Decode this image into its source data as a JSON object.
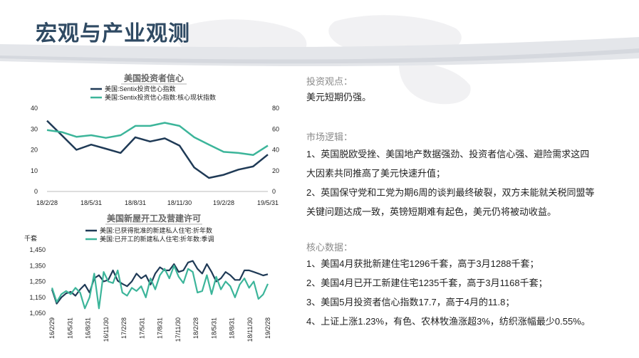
{
  "page": {
    "title": "宏观与产业观测"
  },
  "right": {
    "view_label": "投资观点：",
    "view_text": "美元短期仍强。",
    "logic_label": "市场逻辑：",
    "logic_1": "1、英国脱欧受挫、美国地产数据强劲、投资者信心强、避险需求这四大因素共同推高了美元快速升值；",
    "logic_2": "2、英国保守党和工党为期6周的谈判最终破裂，双方未能就关税同盟等关键问题达成一致，英镑短期难有起色，美元仍将被动收益。",
    "core_label": "核心数据：",
    "core_1": "1、美国4月获批新建住宅1296千套，高于3月1288千套；",
    "core_2": "2、美国4月已开工新建住宅1235千套，高于3月1168千套；",
    "core_3": "3、美国5月投资者信心指数17.7，高于4月的11.8；",
    "core_4": "4、上证上涨1.23%，有色、农林牧渔涨超3%，纺织涨幅最少0.55%。"
  },
  "colors": {
    "navy": "#1f3a56",
    "teal": "#3cb59a",
    "title": "#2f4a63"
  },
  "chart_data": [
    {
      "type": "line",
      "title": "美国投资者信心",
      "x_tick_labels": [
        "18/2/28",
        "18/5/31",
        "18/8/31",
        "18/11/30",
        "19/2/28",
        "19/5/31"
      ],
      "y_left_ticks": [
        "0",
        "10",
        "20",
        "30",
        "40"
      ],
      "y_right_ticks": [
        "0",
        "20",
        "40",
        "60",
        "80"
      ],
      "ylim_left": [
        0,
        40
      ],
      "ylim_right": [
        0,
        80
      ],
      "series": [
        {
          "name": "美国:Sentix投资信心指数",
          "axis": "left",
          "color": "#1f3a56",
          "values": [
            34,
            27,
            20,
            22.5,
            20.5,
            18.5,
            26,
            24,
            25.5,
            22,
            11.5,
            6.5,
            8,
            10.5,
            12,
            17.7
          ]
        },
        {
          "name": "美国:Sentix投资信心指数:核心现状指数",
          "axis": "right",
          "color": "#3cb59a",
          "values": [
            59,
            57,
            52.5,
            54,
            51.5,
            54,
            63,
            63,
            66,
            63,
            52,
            45,
            38,
            37,
            35,
            44
          ]
        }
      ]
    },
    {
      "type": "line",
      "title": "美国新屋开工及营建许可",
      "ylabel": "千套",
      "x_tick_labels": [
        "16/2/29",
        "16/5/31",
        "16/8/31",
        "16/11/30",
        "17/2/28",
        "17/5/31",
        "17/8/31",
        "17/11/30",
        "18/2/28",
        "18/5/31",
        "18/8/31",
        "18/11/30",
        "19/2/28"
      ],
      "y_ticks": [
        "1,050",
        "1,150",
        "1,250",
        "1,350",
        "1,450"
      ],
      "ylim": [
        1050,
        1450
      ],
      "series": [
        {
          "name": "美国:已获得批准的新建私人住宅:折年数",
          "color": "#1f3a56",
          "values": [
            1200,
            1110,
            1150,
            1175,
            1185,
            1160,
            1200,
            1230,
            1180,
            1270,
            1290,
            1250,
            1260,
            1320,
            1255,
            1235,
            1220,
            1250,
            1300,
            1270,
            1290,
            1230,
            1300,
            1340,
            1320,
            1320,
            1360,
            1310,
            1320,
            1370,
            1380,
            1330,
            1300,
            1360,
            1310,
            1250,
            1270,
            1310,
            1290,
            1260,
            1260,
            1320,
            1320,
            1310,
            1300,
            1288,
            1296
          ]
        },
        {
          "name": "美国:已开工的新建私人住宅:折年数:季调",
          "color": "#3cb59a",
          "values": [
            1210,
            1120,
            1170,
            1190,
            1170,
            1210,
            1180,
            1080,
            1150,
            1300,
            1080,
            1310,
            1250,
            1240,
            1320,
            1180,
            1160,
            1210,
            1190,
            1220,
            1150,
            1270,
            1200,
            1290,
            1330,
            1270,
            1350,
            1280,
            1240,
            1330,
            1310,
            1180,
            1190,
            1290,
            1170,
            1280,
            1200,
            1250,
            1220,
            1150,
            1230,
            1270,
            1210,
            1250,
            1140,
            1168,
            1235
          ]
        }
      ]
    }
  ]
}
